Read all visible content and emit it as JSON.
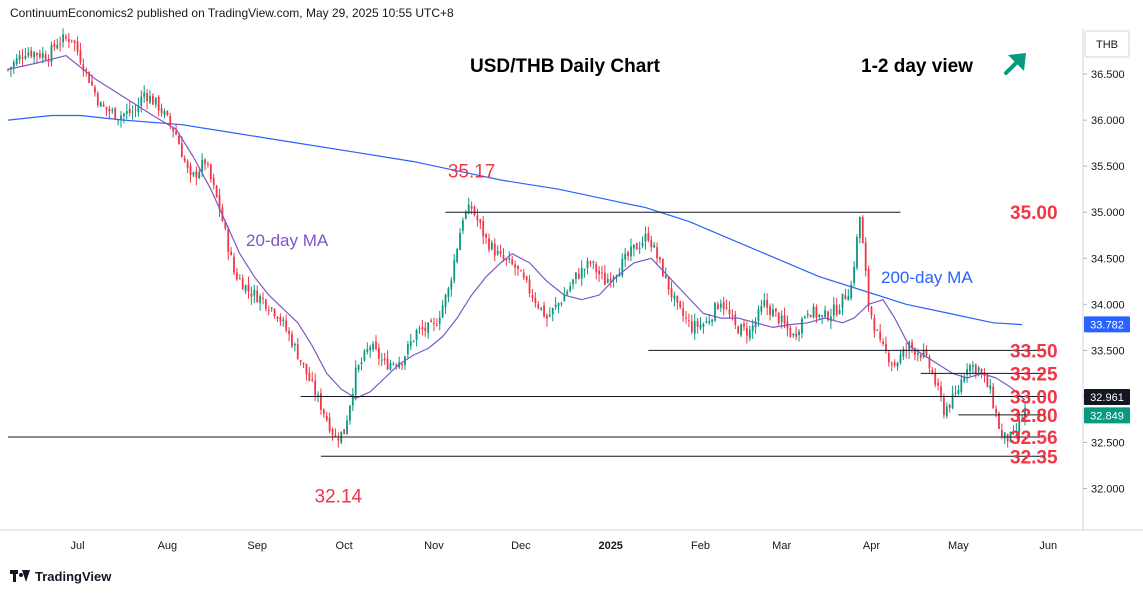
{
  "header": {
    "text": "ContinuumEconomics2 published on TradingView.com, May 29, 2025 10:55 UTC+8"
  },
  "footer": {
    "brand": "TradingView"
  },
  "chart_data": {
    "type": "candlestick",
    "title": "USD/THB Daily Chart",
    "view_label": "1-2 day view",
    "view_icon": "arrow-up-right-icon",
    "currency_label": "THB",
    "ylim": [
      31.55,
      37.0
    ],
    "y_ticks": [
      "36.500",
      "36.000",
      "35.500",
      "35.000",
      "34.500",
      "34.000",
      "33.500",
      "33.000",
      "32.500",
      "32.000"
    ],
    "x_labels": [
      {
        "label": "Jul",
        "day": 24
      },
      {
        "label": "Aug",
        "day": 55
      },
      {
        "label": "Sep",
        "day": 86
      },
      {
        "label": "Oct",
        "day": 116
      },
      {
        "label": "Nov",
        "day": 147
      },
      {
        "label": "Dec",
        "day": 177
      },
      {
        "label": "2025",
        "day": 208
      },
      {
        "label": "Feb",
        "day": 239
      },
      {
        "label": "Mar",
        "day": 267
      },
      {
        "label": "Apr",
        "day": 298
      },
      {
        "label": "May",
        "day": 328
      },
      {
        "label": "Jun",
        "day": 359
      }
    ],
    "levels": [
      {
        "value": 35.0,
        "label": "35.00",
        "from_day": 151,
        "to_day": 308
      },
      {
        "value": 33.5,
        "label": "33.50",
        "from_day": 221,
        "to_day": 358
      },
      {
        "value": 33.25,
        "label": "33.25",
        "from_day": 315,
        "to_day": 358
      },
      {
        "value": 33.0,
        "label": "33.00",
        "from_day": 101,
        "to_day": 358
      },
      {
        "value": 32.8,
        "label": "32.80",
        "from_day": 328,
        "to_day": 358
      },
      {
        "value": 32.56,
        "label": "32.56",
        "from_day": 0,
        "to_day": 358
      },
      {
        "value": 32.35,
        "label": "32.35",
        "from_day": 108,
        "to_day": 358
      }
    ],
    "price_labels": [
      {
        "text": "35.17",
        "day": 160,
        "value": 35.17
      },
      {
        "text": "32.14",
        "day": 114,
        "value": 32.14
      }
    ],
    "ma_labels": [
      {
        "text": "20-day MA",
        "series": "ma20"
      },
      {
        "text": "200-day MA",
        "series": "ma200"
      }
    ],
    "last_values": [
      {
        "text": "33.782",
        "value": 33.782,
        "color": "#2962ff"
      },
      {
        "text": "32.961",
        "value": 32.961,
        "color": "#131722"
      },
      {
        "text": "32.849",
        "value": 32.849,
        "color": "#089981"
      }
    ],
    "colors": {
      "up": "#089981",
      "down": "#f23645",
      "ma20": "#7e57c2",
      "ma200": "#2962ff",
      "level": "#f23645",
      "label": "#f23645"
    },
    "close_points": [
      [
        0,
        36.55
      ],
      [
        6,
        36.75
      ],
      [
        14,
        36.7
      ],
      [
        17,
        36.85
      ],
      [
        22,
        36.9
      ],
      [
        28,
        36.45
      ],
      [
        32,
        36.15
      ],
      [
        38,
        36.05
      ],
      [
        44,
        36.1
      ],
      [
        47,
        36.3
      ],
      [
        52,
        36.15
      ],
      [
        58,
        35.85
      ],
      [
        63,
        35.35
      ],
      [
        68,
        35.55
      ],
      [
        73,
        35.05
      ],
      [
        78,
        34.35
      ],
      [
        83,
        34.15
      ],
      [
        88,
        34.05
      ],
      [
        93,
        33.9
      ],
      [
        98,
        33.6
      ],
      [
        103,
        33.25
      ],
      [
        108,
        32.9
      ],
      [
        113,
        32.55
      ],
      [
        116,
        32.62
      ],
      [
        120,
        33.25
      ],
      [
        125,
        33.55
      ],
      [
        130,
        33.35
      ],
      [
        136,
        33.4
      ],
      [
        141,
        33.7
      ],
      [
        147,
        33.75
      ],
      [
        152,
        34.15
      ],
      [
        157,
        34.95
      ],
      [
        160,
        35.05
      ],
      [
        165,
        34.7
      ],
      [
        170,
        34.5
      ],
      [
        175,
        34.4
      ],
      [
        180,
        34.15
      ],
      [
        186,
        33.85
      ],
      [
        191,
        34.05
      ],
      [
        196,
        34.3
      ],
      [
        201,
        34.45
      ],
      [
        206,
        34.25
      ],
      [
        211,
        34.4
      ],
      [
        216,
        34.6
      ],
      [
        221,
        34.75
      ],
      [
        226,
        34.35
      ],
      [
        231,
        33.95
      ],
      [
        236,
        33.75
      ],
      [
        241,
        33.8
      ],
      [
        246,
        34.05
      ],
      [
        251,
        33.75
      ],
      [
        256,
        33.7
      ],
      [
        261,
        34.0
      ],
      [
        266,
        33.85
      ],
      [
        271,
        33.65
      ],
      [
        276,
        33.95
      ],
      [
        281,
        33.85
      ],
      [
        286,
        33.95
      ],
      [
        291,
        34.2
      ],
      [
        294,
        34.95
      ],
      [
        297,
        34.0
      ],
      [
        301,
        33.55
      ],
      [
        306,
        33.35
      ],
      [
        311,
        33.55
      ],
      [
        316,
        33.45
      ],
      [
        319,
        33.25
      ],
      [
        323,
        32.85
      ],
      [
        327,
        33.0
      ],
      [
        331,
        33.35
      ],
      [
        335,
        33.3
      ],
      [
        339,
        33.05
      ],
      [
        343,
        32.55
      ],
      [
        347,
        32.55
      ],
      [
        351,
        32.85
      ]
    ],
    "ma20_points": [
      [
        0,
        36.55
      ],
      [
        10,
        36.62
      ],
      [
        20,
        36.7
      ],
      [
        30,
        36.45
      ],
      [
        40,
        36.25
      ],
      [
        50,
        36.05
      ],
      [
        58,
        35.9
      ],
      [
        64,
        35.6
      ],
      [
        70,
        35.25
      ],
      [
        75,
        34.9
      ],
      [
        80,
        34.55
      ],
      [
        85,
        34.3
      ],
      [
        90,
        34.1
      ],
      [
        95,
        33.95
      ],
      [
        100,
        33.8
      ],
      [
        105,
        33.55
      ],
      [
        110,
        33.25
      ],
      [
        115,
        33.08
      ],
      [
        120,
        32.98
      ],
      [
        125,
        33.05
      ],
      [
        130,
        33.2
      ],
      [
        135,
        33.35
      ],
      [
        140,
        33.45
      ],
      [
        145,
        33.52
      ],
      [
        150,
        33.65
      ],
      [
        155,
        33.85
      ],
      [
        160,
        34.1
      ],
      [
        165,
        34.3
      ],
      [
        170,
        34.45
      ],
      [
        174,
        34.55
      ],
      [
        180,
        34.45
      ],
      [
        186,
        34.25
      ],
      [
        192,
        34.1
      ],
      [
        198,
        34.05
      ],
      [
        204,
        34.1
      ],
      [
        210,
        34.3
      ],
      [
        216,
        34.45
      ],
      [
        222,
        34.5
      ],
      [
        228,
        34.3
      ],
      [
        234,
        34.1
      ],
      [
        240,
        33.9
      ],
      [
        246,
        33.85
      ],
      [
        252,
        33.85
      ],
      [
        258,
        33.8
      ],
      [
        264,
        33.75
      ],
      [
        270,
        33.78
      ],
      [
        276,
        33.8
      ],
      [
        282,
        33.85
      ],
      [
        288,
        33.8
      ],
      [
        292,
        33.85
      ],
      [
        297,
        34.0
      ],
      [
        302,
        34.05
      ],
      [
        306,
        33.85
      ],
      [
        311,
        33.55
      ],
      [
        316,
        33.45
      ],
      [
        321,
        33.35
      ],
      [
        326,
        33.25
      ],
      [
        331,
        33.2
      ],
      [
        336,
        33.25
      ],
      [
        341,
        33.2
      ],
      [
        346,
        33.1
      ],
      [
        351,
        32.96
      ]
    ],
    "ma200_points": [
      [
        0,
        36.0
      ],
      [
        15,
        36.05
      ],
      [
        25,
        36.05
      ],
      [
        40,
        36.0
      ],
      [
        60,
        35.95
      ],
      [
        80,
        35.85
      ],
      [
        100,
        35.75
      ],
      [
        120,
        35.65
      ],
      [
        140,
        35.55
      ],
      [
        155,
        35.45
      ],
      [
        170,
        35.35
      ],
      [
        190,
        35.25
      ],
      [
        205,
        35.15
      ],
      [
        220,
        35.05
      ],
      [
        235,
        34.9
      ],
      [
        250,
        34.7
      ],
      [
        265,
        34.5
      ],
      [
        280,
        34.3
      ],
      [
        295,
        34.15
      ],
      [
        310,
        34.0
      ],
      [
        325,
        33.9
      ],
      [
        340,
        33.8
      ],
      [
        350,
        33.78
      ]
    ]
  }
}
